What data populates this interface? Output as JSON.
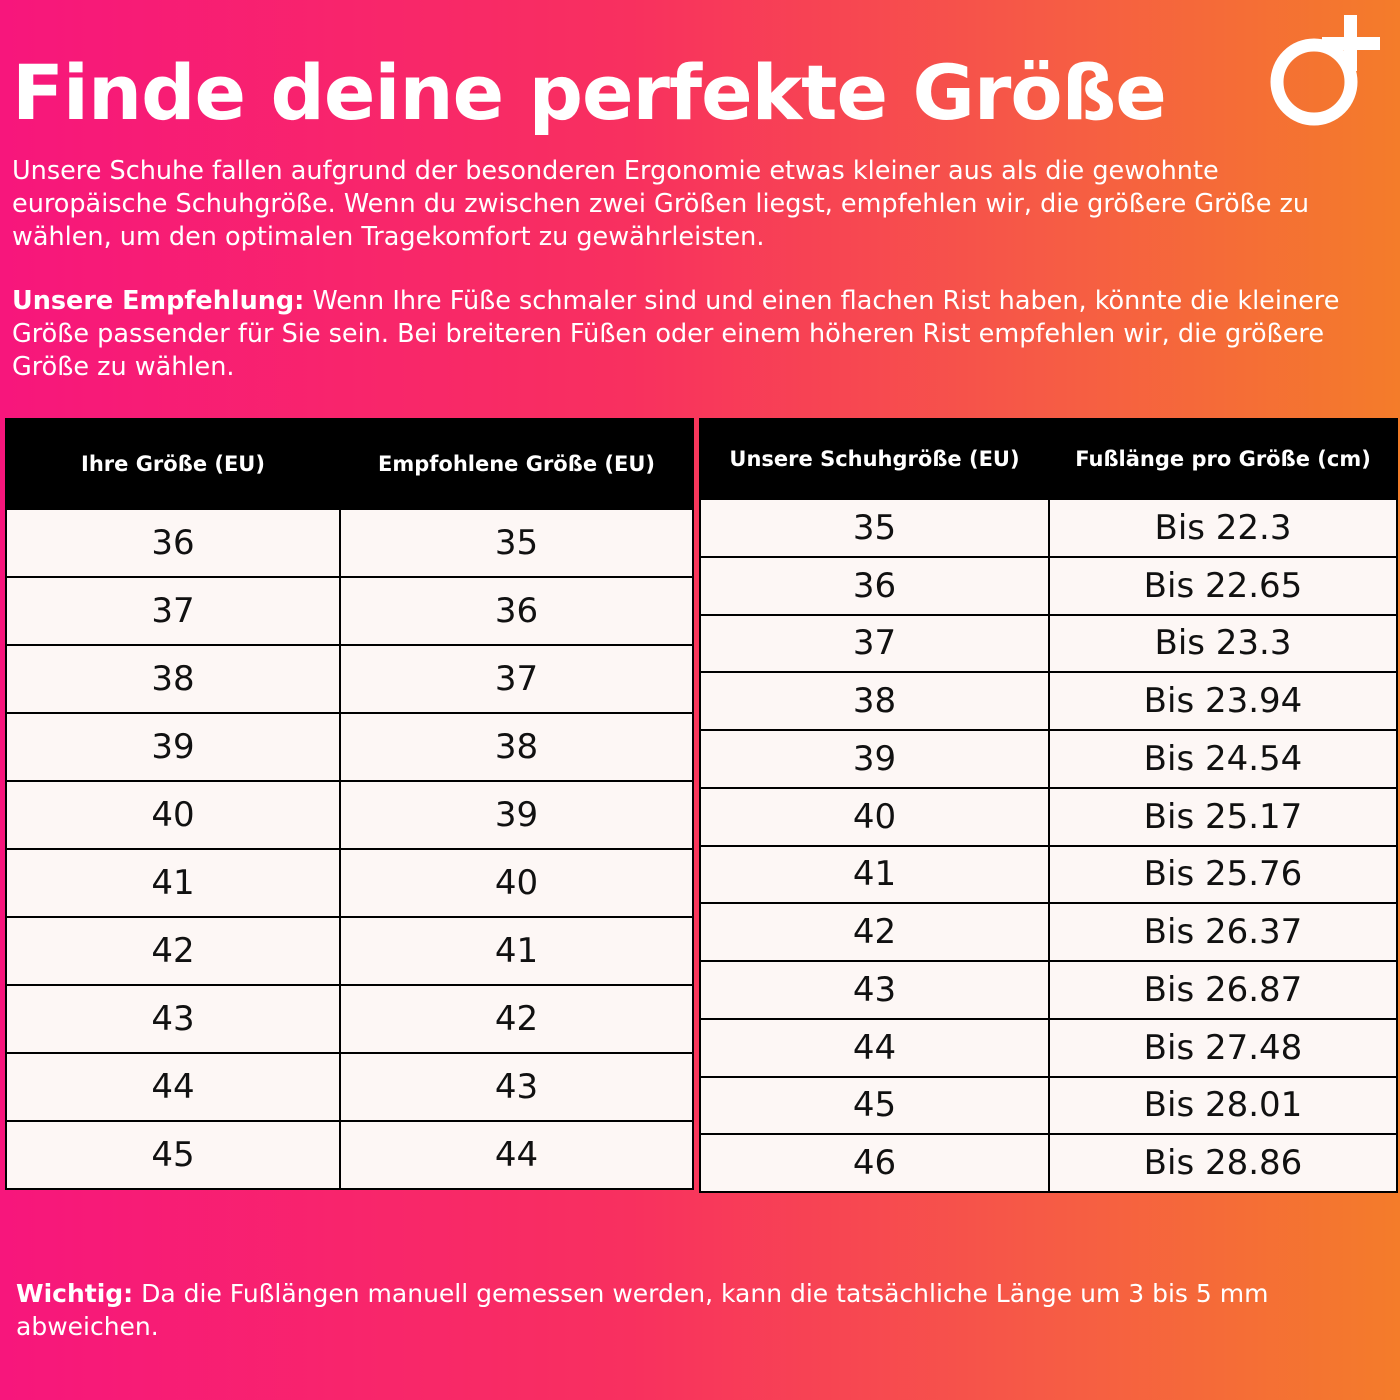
{
  "title": "Finde deine perfekte Größe",
  "intro": "Unsere Schuhe fallen aufgrund der besonderen Ergonomie etwas kleiner aus als die gewohnte europäische Schuhgröße. Wenn du zwischen zwei Größen liegst, empfehlen wir, die größere Größe zu wählen, um den optimalen Tragekomfort zu gewährleisten.",
  "recommendation": {
    "label": "Unsere Empfehlung:",
    "text": "Wenn Ihre Füße schmaler sind und einen flachen Rist haben, könnte die kleinere Größe passender für Sie sein. Bei breiteren Füßen oder einem höheren Rist empfehlen wir, die größere Größe zu wählen."
  },
  "table_left": {
    "headers": [
      "Ihre Größe (EU)",
      "Empfohlene Größe (EU)"
    ],
    "rows": [
      [
        "36",
        "35"
      ],
      [
        "37",
        "36"
      ],
      [
        "38",
        "37"
      ],
      [
        "39",
        "38"
      ],
      [
        "40",
        "39"
      ],
      [
        "41",
        "40"
      ],
      [
        "42",
        "41"
      ],
      [
        "43",
        "42"
      ],
      [
        "44",
        "43"
      ],
      [
        "45",
        "44"
      ]
    ]
  },
  "table_right": {
    "headers": [
      "Unsere Schuhgröße (EU)",
      "Fußlänge pro Größe (cm)"
    ],
    "rows": [
      [
        "35",
        "Bis 22.3"
      ],
      [
        "36",
        "Bis 22.65"
      ],
      [
        "37",
        "Bis 23.3"
      ],
      [
        "38",
        "Bis 23.94"
      ],
      [
        "39",
        "Bis 24.54"
      ],
      [
        "40",
        "Bis 25.17"
      ],
      [
        "41",
        "Bis 25.76"
      ],
      [
        "42",
        "Bis 26.37"
      ],
      [
        "43",
        "Bis 26.87"
      ],
      [
        "44",
        "Bis 27.48"
      ],
      [
        "45",
        "Bis 28.01"
      ],
      [
        "46",
        "Bis 28.86"
      ]
    ]
  },
  "note": {
    "label": "Wichtig:",
    "text": "Da die Fußlängen manuell gemessen werden, kann die tatsächliche Länge um 3 bis 5 mm abweichen."
  }
}
